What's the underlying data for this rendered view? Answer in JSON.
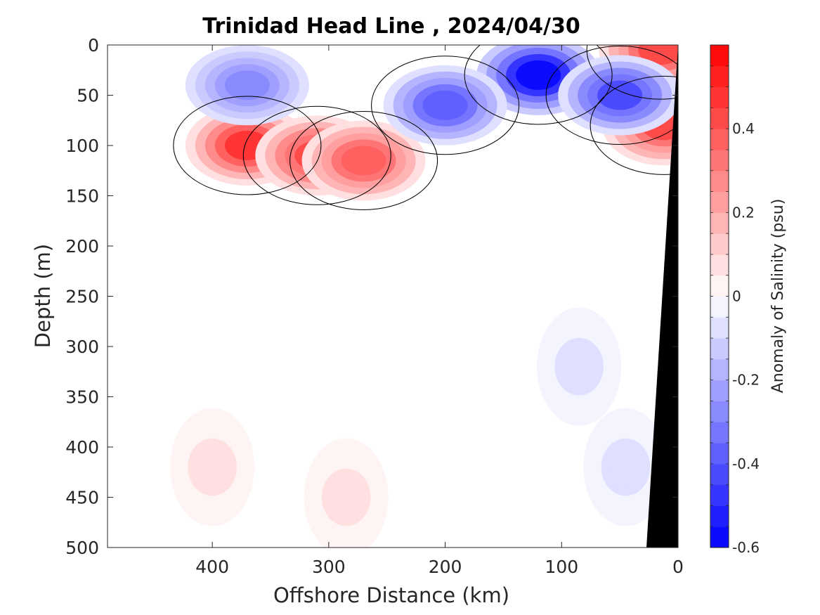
{
  "chart_data": {
    "type": "heatmap",
    "title": "Trinidad Head Line , 2024/04/30",
    "xlabel": "Offshore Distance (km)",
    "ylabel": "Depth (m)",
    "colorbar_label": "Anomaly of Salinity (psu)",
    "xlim": [
      490,
      0
    ],
    "ylim": [
      0,
      500
    ],
    "y_reversed": true,
    "x_reversed": true,
    "xticks": [
      400,
      300,
      200,
      100,
      0
    ],
    "xtick_labels": [
      "400",
      "300",
      "200",
      "100",
      "0"
    ],
    "yticks": [
      0,
      50,
      100,
      150,
      200,
      250,
      300,
      350,
      400,
      450,
      500
    ],
    "ytick_labels": [
      "0",
      "50",
      "100",
      "150",
      "200",
      "250",
      "300",
      "350",
      "400",
      "450",
      "500"
    ],
    "clim": [
      -0.6,
      0.6
    ],
    "colorbar_ticks": [
      0.4,
      0.2,
      0,
      -0.2,
      -0.4,
      -0.6
    ],
    "colorbar_tick_labels": [
      "0.4",
      "0.2",
      "0",
      "-0.2",
      "-0.4",
      "-0.6"
    ],
    "contour_level": 0,
    "data_extent_x": [
      420,
      0
    ],
    "colors": {
      "positive": "#ff0000",
      "negative": "#0000ff",
      "zero": "#ffffff",
      "bathymetry": "#000000"
    },
    "features": [
      {
        "kind": "positive",
        "x": 370,
        "depth": 100,
        "value": 0.45
      },
      {
        "kind": "positive",
        "x": 310,
        "depth": 110,
        "value": 0.42
      },
      {
        "kind": "positive",
        "x": 270,
        "depth": 115,
        "value": 0.38
      },
      {
        "kind": "positive",
        "x": 12,
        "depth": 80,
        "value": 0.4
      },
      {
        "kind": "positive",
        "x": 15,
        "depth": 5,
        "value": 0.4
      },
      {
        "kind": "positive",
        "x": 285,
        "depth": 450,
        "value": 0.08
      },
      {
        "kind": "positive",
        "x": 400,
        "depth": 420,
        "value": 0.08
      },
      {
        "kind": "negative",
        "x": 120,
        "depth": 30,
        "value": -0.58
      },
      {
        "kind": "negative",
        "x": 50,
        "depth": 50,
        "value": -0.42
      },
      {
        "kind": "negative",
        "x": 200,
        "depth": 60,
        "value": -0.38
      },
      {
        "kind": "negative",
        "x": 370,
        "depth": 40,
        "value": -0.3
      },
      {
        "kind": "negative",
        "x": 85,
        "depth": 320,
        "value": -0.08
      },
      {
        "kind": "negative",
        "x": 45,
        "depth": 420,
        "value": -0.07
      }
    ]
  }
}
